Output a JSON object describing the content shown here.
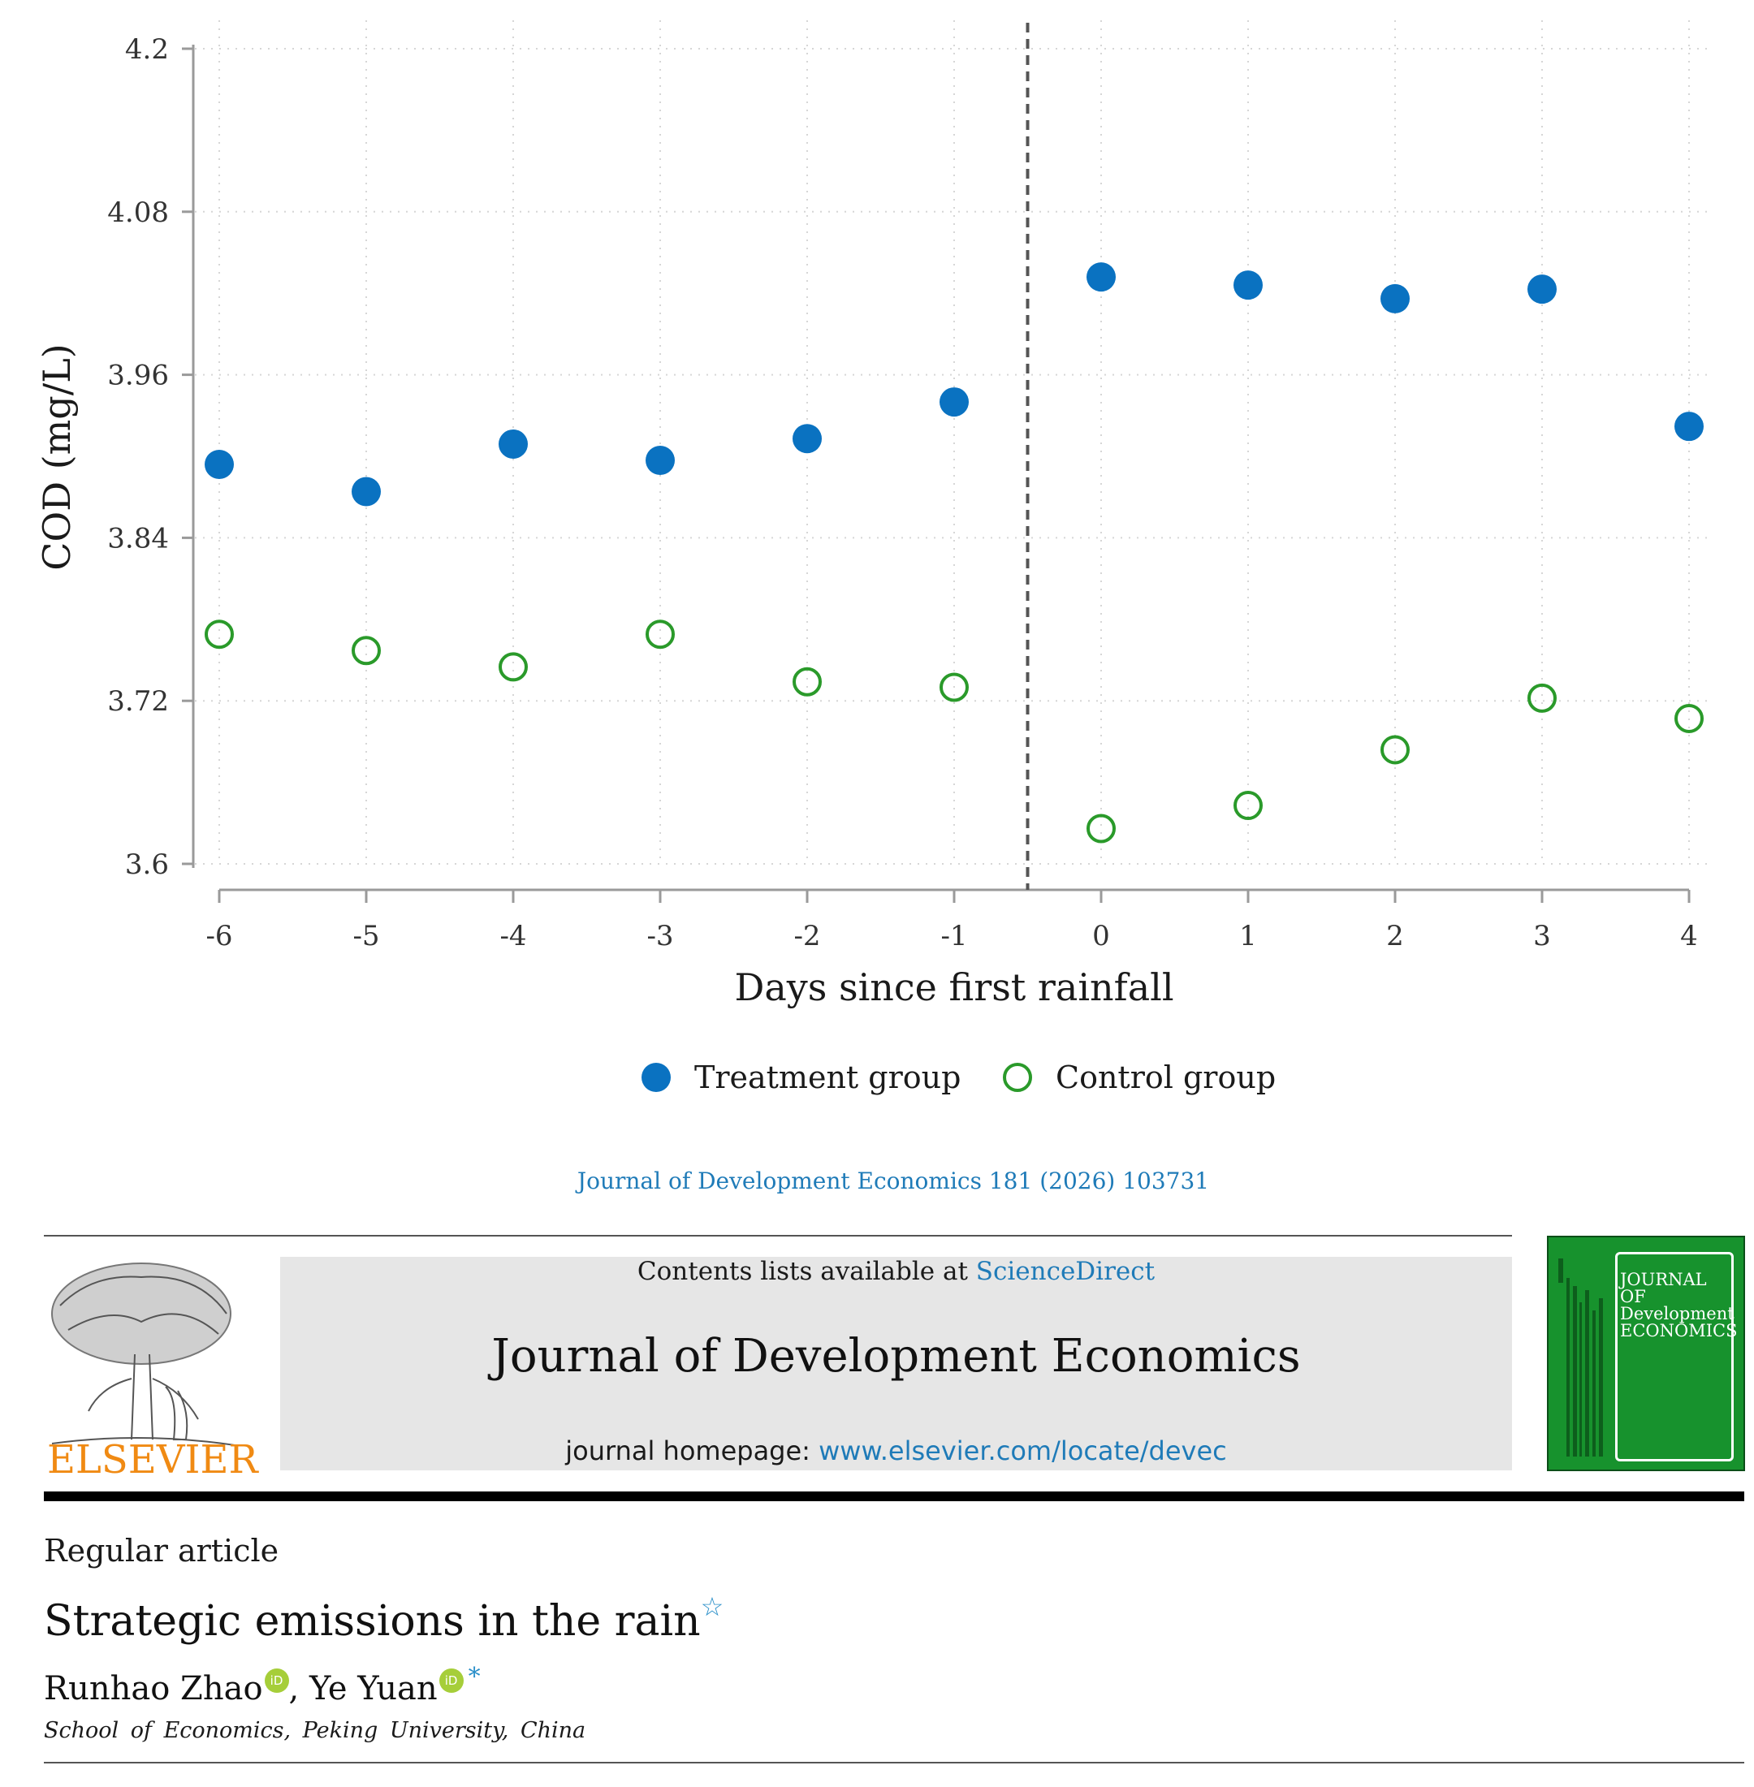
{
  "chart_data": {
    "type": "scatter",
    "xlabel": "Days since first rainfall",
    "ylabel": "COD (mg/L)",
    "xlim": [
      -6,
      4
    ],
    "ylim": [
      3.6,
      4.2
    ],
    "xticks": [
      -6,
      -5,
      -4,
      -3,
      -2,
      -1,
      0,
      1,
      2,
      3,
      4
    ],
    "xtick_labels": [
      "-6",
      "-5",
      "-4",
      "-3",
      "-2",
      "-1",
      "0",
      "1",
      "2",
      "3",
      "4"
    ],
    "yticks": [
      3.6,
      3.72,
      3.84,
      3.96,
      4.08,
      4.2
    ],
    "ytick_labels": [
      "3.6",
      "3.72",
      "3.84",
      "3.96",
      "4.08",
      "4.2"
    ],
    "grid": true,
    "reference_line_x": -0.5,
    "legend_position": "bottom",
    "series": [
      {
        "name": "Treatment group",
        "marker": "filled-circle",
        "color": "#0a72c1",
        "x": [
          -6,
          -5,
          -4,
          -3,
          -2,
          -1,
          0,
          1,
          2,
          3,
          4
        ],
        "y": [
          3.894,
          3.874,
          3.909,
          3.897,
          3.913,
          3.94,
          4.032,
          4.026,
          4.016,
          4.023,
          3.922
        ]
      },
      {
        "name": "Control group",
        "marker": "hollow-circle",
        "color": "#2a9a2a",
        "x": [
          -6,
          -5,
          -4,
          -3,
          -2,
          -1,
          0,
          1,
          2,
          3,
          4
        ],
        "y": [
          3.769,
          3.757,
          3.745,
          3.769,
          3.734,
          3.73,
          3.626,
          3.643,
          3.684,
          3.722,
          3.707
        ]
      }
    ]
  },
  "citation": "Journal of Development Economics 181 (2026) 103731",
  "header": {
    "publisher": "ELSEVIER",
    "contents_prefix": "Contents lists available at ",
    "contents_link": "ScienceDirect",
    "journal_name": "Journal of Development Economics",
    "homepage_prefix": "journal homepage: ",
    "homepage_link": "www.elsevier.com/locate/devec",
    "cover_title_1": "JOURNAL OF",
    "cover_title_2": "Development",
    "cover_title_3": "ECONOMICS"
  },
  "article": {
    "type": "Regular article",
    "title": "Strategic emissions in the rain",
    "title_mark": "☆",
    "author_1": "Runhao Zhao",
    "separator": ", ",
    "author_2": "Ye Yuan",
    "orcid_label": "iD",
    "corresponding_mark": "*",
    "affiliation": "School of Economics, Peking University, China"
  },
  "colors": {
    "treatment": "#0a72c1",
    "control": "#2a9a2a",
    "link": "#1f7bb8",
    "elsevier_orange": "#f08a13",
    "cover_green": "#17922d"
  }
}
